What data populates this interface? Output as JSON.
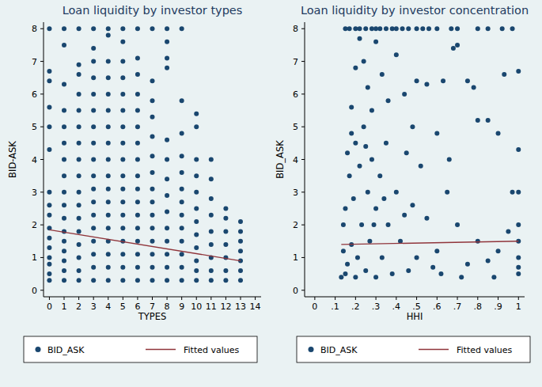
{
  "chart_data": [
    {
      "type": "scatter",
      "title": "Loan liquidity by investor types",
      "x_label": "TYPES",
      "y_label": "BID-ASK",
      "xlim": [
        -0.4,
        14.4
      ],
      "ylim": [
        -0.2,
        8.2
      ],
      "xticks": [
        0,
        1,
        2,
        3,
        4,
        5,
        6,
        7,
        8,
        9,
        10,
        11,
        12,
        13,
        14
      ],
      "yticks": [
        0,
        1,
        2,
        3,
        4,
        5,
        6,
        7,
        8
      ],
      "grid": false,
      "legend": "bottom",
      "series": [
        {
          "name": "BID_ASK",
          "type": "scatter",
          "marker": "circle",
          "color": "#1a476f",
          "x": [
            0,
            0,
            0,
            0,
            0,
            0,
            0,
            0,
            0,
            0,
            0,
            0,
            0,
            0,
            0,
            0,
            1,
            1,
            1,
            1,
            1,
            1,
            1,
            1,
            1,
            1,
            1,
            1,
            1,
            1,
            1,
            1,
            1,
            2,
            2,
            2,
            2,
            2,
            2,
            2,
            2,
            2,
            2,
            2,
            2,
            2,
            2,
            2,
            2,
            2,
            3,
            3,
            3,
            3,
            3,
            3,
            3,
            3,
            3,
            3,
            3,
            3,
            3,
            3,
            3,
            3,
            3,
            3,
            4,
            4,
            4,
            4,
            4,
            4,
            4,
            4,
            4,
            4,
            4,
            4,
            4,
            4,
            4,
            4,
            4,
            4,
            5,
            5,
            5,
            5,
            5,
            5,
            5,
            5,
            5,
            5,
            5,
            5,
            5,
            5,
            5,
            5,
            5,
            5,
            6,
            6,
            6,
            6,
            6,
            6,
            6,
            6,
            6,
            6,
            6,
            6,
            6,
            6,
            6,
            6,
            6,
            7,
            7,
            7,
            7,
            7,
            7,
            7,
            7,
            7,
            7,
            7,
            7,
            7,
            7,
            7,
            8,
            8,
            8,
            8,
            8,
            8,
            8,
            8,
            8,
            8,
            8,
            8,
            8,
            8,
            9,
            9,
            9,
            9,
            9,
            9,
            9,
            9,
            9,
            9,
            9,
            9,
            9,
            10,
            10,
            10,
            10,
            10,
            10,
            10,
            10,
            10,
            10,
            10,
            10,
            11,
            11,
            11,
            11,
            11,
            11,
            11,
            11,
            11,
            12,
            12,
            12,
            12,
            12,
            12,
            12,
            13,
            13,
            13,
            13,
            13,
            13,
            13
          ],
          "values": [
            0.3,
            0.5,
            0.8,
            1.0,
            1.3,
            1.6,
            1.9,
            2.3,
            2.6,
            3.0,
            4.3,
            5.0,
            5.6,
            6.4,
            6.7,
            8,
            0.3,
            0.6,
            0.9,
            1.2,
            1.5,
            1.8,
            2.2,
            2.6,
            3.0,
            3.5,
            4.0,
            4.5,
            5.0,
            5.5,
            6.3,
            7.5,
            8,
            0.3,
            0.6,
            1.0,
            1.4,
            1.8,
            2.2,
            2.6,
            3.0,
            3.5,
            4.0,
            4.5,
            5.0,
            5.5,
            6.0,
            6.6,
            6.9,
            8,
            0.3,
            0.7,
            1.1,
            1.5,
            1.9,
            2.3,
            2.7,
            3.1,
            3.5,
            4.0,
            4.5,
            5.0,
            5.5,
            6.0,
            6.5,
            7.0,
            7.4,
            8,
            0.3,
            0.7,
            1.1,
            1.5,
            1.9,
            2.3,
            2.7,
            3.1,
            3.5,
            4.0,
            4.5,
            5.0,
            5.5,
            6.0,
            6.5,
            7.0,
            7.8,
            8,
            0.3,
            0.7,
            1.1,
            1.5,
            1.9,
            2.3,
            2.7,
            3.1,
            3.5,
            4.0,
            4.5,
            5.0,
            5.5,
            6.0,
            6.5,
            7.0,
            7.6,
            8,
            0.3,
            0.7,
            1.1,
            1.5,
            1.9,
            2.3,
            2.7,
            3.1,
            3.5,
            4.0,
            4.5,
            5.0,
            5.5,
            6.0,
            6.6,
            7.1,
            8,
            0.3,
            0.7,
            1.1,
            1.5,
            1.9,
            2.3,
            2.7,
            3.1,
            3.6,
            4.1,
            4.7,
            5.3,
            5.8,
            6.4,
            8,
            0.3,
            0.7,
            1.1,
            1.5,
            1.9,
            2.4,
            2.9,
            3.4,
            4.0,
            4.6,
            6.8,
            7.1,
            7.6,
            8,
            0.3,
            0.7,
            1.1,
            1.5,
            1.9,
            2.3,
            2.7,
            3.1,
            3.6,
            4.1,
            4.8,
            5.8,
            8,
            0.3,
            0.6,
            0.9,
            1.3,
            1.7,
            2.1,
            2.5,
            3.0,
            3.5,
            4.0,
            5.0,
            5.4,
            0.3,
            0.6,
            1.0,
            1.4,
            1.8,
            2.3,
            2.8,
            3.4,
            4.0,
            0.3,
            0.6,
            1.0,
            1.4,
            1.8,
            2.2,
            2.5,
            0.3,
            0.6,
            0.9,
            1.2,
            1.5,
            1.8,
            2.1
          ]
        },
        {
          "name": "Fitted values",
          "type": "line",
          "line_style": "solid",
          "color": "#90353b",
          "x": [
            0,
            13
          ],
          "values": [
            1.85,
            0.9
          ]
        }
      ]
    },
    {
      "type": "scatter",
      "title": "Loan liquidity by investor concentration",
      "x_label": "HHI",
      "y_label": "BID_ASK",
      "xlim": [
        -0.05,
        1.03
      ],
      "ylim": [
        -0.2,
        8.2
      ],
      "xticks": [
        0,
        {
          "value": 0.1,
          "label": ".1"
        },
        {
          "value": 0.2,
          "label": ".2"
        },
        {
          "value": 0.3,
          "label": ".3"
        },
        {
          "value": 0.4,
          "label": ".4"
        },
        {
          "value": 0.5,
          "label": ".5"
        },
        {
          "value": 0.6,
          "label": ".6"
        },
        {
          "value": 0.7,
          "label": ".7"
        },
        {
          "value": 0.8,
          "label": ".8"
        },
        {
          "value": 0.9,
          "label": ".9"
        },
        1
      ],
      "yticks": [
        0,
        1,
        2,
        3,
        4,
        5,
        6,
        7,
        8
      ],
      "grid": false,
      "legend": "bottom",
      "series": [
        {
          "name": "BID_ASK",
          "type": "scatter",
          "marker": "circle",
          "color": "#1a476f",
          "x": [
            0.15,
            0.17,
            0.2,
            0.22,
            0.25,
            0.28,
            0.3,
            0.32,
            0.35,
            0.38,
            0.4,
            0.43,
            0.46,
            0.5,
            0.53,
            0.56,
            0.6,
            0.67,
            0.7,
            0.8,
            0.85,
            0.92,
            0.97,
            0.14,
            0.16,
            0.18,
            0.2,
            0.22,
            0.24,
            0.26,
            0.28,
            0.3,
            0.33,
            0.36,
            0.4,
            0.44,
            0.48,
            0.5,
            0.55,
            0.6,
            0.63,
            0.68,
            0.7,
            0.75,
            0.78,
            0.85,
            0.9,
            0.93,
            1,
            1,
            1,
            1,
            1,
            1,
            1,
            1,
            0.95,
            0.9,
            0.85,
            0.8,
            0.75,
            0.7,
            0.65,
            0.6,
            0.58,
            0.55,
            0.52,
            0.5,
            0.48,
            0.46,
            0.45,
            0.42,
            0.4,
            0.38,
            0.36,
            0.35,
            0.33,
            0.32,
            0.3,
            0.3,
            0.28,
            0.27,
            0.26,
            0.25,
            0.24,
            0.23,
            0.22,
            0.21,
            0.2,
            0.2,
            0.19,
            0.18,
            0.17,
            0.16,
            0.15,
            0.15,
            0.14,
            0.13,
            0.18,
            0.25,
            0.29,
            0.34,
            0.44,
            0.62,
            0.72,
            0.88,
            0.97,
            0.8,
            0.66
          ],
          "values": [
            8,
            8,
            8,
            8,
            8,
            8,
            8,
            8,
            8,
            8,
            8,
            8,
            8,
            8,
            8,
            8,
            8,
            8,
            8,
            8,
            8,
            8,
            8,
            2.0,
            4.2,
            5.6,
            6.8,
            7.7,
            7.0,
            6.2,
            5.5,
            7.6,
            6.6,
            5.8,
            7.2,
            6.0,
            5.0,
            6.4,
            6.3,
            4.8,
            6.4,
            7.4,
            7.5,
            6.4,
            6.2,
            5.2,
            4.8,
            6.6,
            6.7,
            4.3,
            3.0,
            2.0,
            1.5,
            1.0,
            0.7,
            0.5,
            1.8,
            1.2,
            0.9,
            1.5,
            0.8,
            2.0,
            3.0,
            1.2,
            0.7,
            2.2,
            3.8,
            1.0,
            2.6,
            0.6,
            4.2,
            1.5,
            3.0,
            0.5,
            2.0,
            4.5,
            1.0,
            3.5,
            0.4,
            2.5,
            4.0,
            1.5,
            3.0,
            0.6,
            5.0,
            2.0,
            3.8,
            1.0,
            4.5,
            0.4,
            2.8,
            1.4,
            3.5,
            0.8,
            2.5,
            0.5,
            1.2,
            0.4,
            4.8,
            4.4,
            2.0,
            2.8,
            2.3,
            0.5,
            0.4,
            0.4,
            3.0,
            5.2,
            4.0
          ]
        },
        {
          "name": "Fitted values",
          "type": "line",
          "line_style": "solid",
          "color": "#90353b",
          "x": [
            0.13,
            1
          ],
          "values": [
            1.4,
            1.5
          ]
        }
      ]
    }
  ]
}
